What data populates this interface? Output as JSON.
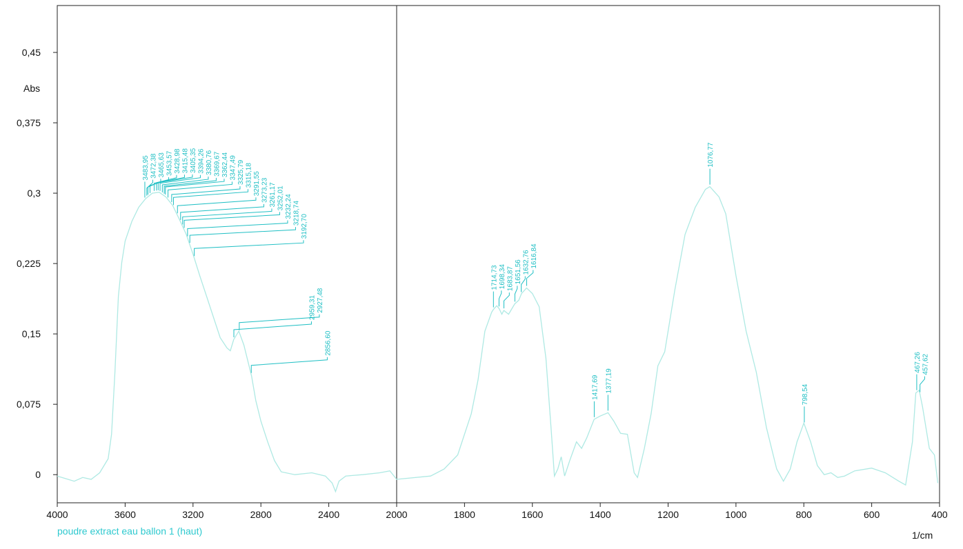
{
  "chart_data": {
    "type": "line",
    "y_label": "Abs",
    "x_label": "1/cm",
    "xlim": [
      4000,
      400
    ],
    "x_scale_break": 2000,
    "ylim": [
      -0.03,
      0.5
    ],
    "xticks": [
      4000,
      3600,
      3200,
      2800,
      2400,
      2000,
      1800,
      1600,
      1400,
      1200,
      1000,
      800,
      600,
      400
    ],
    "yticks": [
      0,
      {
        "value": 0.075,
        "label": "0,075"
      },
      {
        "value": 0.15,
        "label": "0,15"
      },
      {
        "value": 0.225,
        "label": "0,225"
      },
      {
        "value": 0.3,
        "label": "0,3"
      },
      {
        "value": 0.375,
        "label": "0,375"
      },
      {
        "value": 0.45,
        "label": "0,45"
      }
    ],
    "series": [
      {
        "name": "poudre extract eau ballon 1 (haut)",
        "color": "#aee9e3",
        "x": [
          4000,
          3900,
          3850,
          3800,
          3750,
          3700,
          3680,
          3660,
          3640,
          3620,
          3600,
          3560,
          3520,
          3480,
          3440,
          3400,
          3360,
          3320,
          3280,
          3240,
          3200,
          3160,
          3120,
          3080,
          3040,
          3000,
          2980,
          2960,
          2930,
          2900,
          2870,
          2855,
          2830,
          2800,
          2760,
          2720,
          2680,
          2600,
          2500,
          2420,
          2380,
          2360,
          2340,
          2300,
          2200,
          2100,
          2040,
          2000,
          1900,
          1860,
          1820,
          1780,
          1760,
          1740,
          1720,
          1715,
          1705,
          1698,
          1690,
          1684,
          1670,
          1652,
          1640,
          1632,
          1617,
          1600,
          1580,
          1560,
          1545,
          1535,
          1525,
          1515,
          1505,
          1490,
          1470,
          1455,
          1440,
          1418,
          1400,
          1377,
          1360,
          1340,
          1320,
          1300,
          1290,
          1270,
          1250,
          1230,
          1210,
          1180,
          1150,
          1120,
          1090,
          1077,
          1050,
          1030,
          1000,
          970,
          940,
          910,
          880,
          860,
          840,
          820,
          800,
          780,
          760,
          740,
          720,
          700,
          680,
          650,
          600,
          560,
          520,
          500,
          480,
          470,
          460,
          450,
          430,
          415,
          405
        ],
        "values": [
          -0.0015,
          -0.007,
          -0.003,
          -0.005,
          0.002,
          0.017,
          0.043,
          0.109,
          0.19,
          0.226,
          0.249,
          0.27,
          0.285,
          0.294,
          0.3,
          0.301,
          0.296,
          0.287,
          0.272,
          0.256,
          0.235,
          0.212,
          0.19,
          0.168,
          0.146,
          0.135,
          0.132,
          0.144,
          0.153,
          0.138,
          0.116,
          0.105,
          0.079,
          0.057,
          0.035,
          0.015,
          0.003,
          0,
          0.002,
          -0.0015,
          -0.009,
          -0.018,
          -0.007,
          -0.0015,
          0,
          0.002,
          0.004,
          -0.005,
          -0.0015,
          0.006,
          0.021,
          0.065,
          0.101,
          0.153,
          0.173,
          0.176,
          0.18,
          0.177,
          0.171,
          0.175,
          0.171,
          0.182,
          0.186,
          0.193,
          0.199,
          0.193,
          0.179,
          0.124,
          0.05,
          -0.0015,
          0.006,
          0.019,
          -0.0015,
          0.015,
          0.035,
          0.028,
          0.039,
          0.059,
          0.0625,
          0.066,
          0.057,
          0.044,
          0.043,
          0.002,
          -0.003,
          0.028,
          0.065,
          0.116,
          0.131,
          0.197,
          0.256,
          0.285,
          0.304,
          0.307,
          0.296,
          0.278,
          0.212,
          0.153,
          0.109,
          0.05,
          0.006,
          -0.007,
          0.006,
          0.035,
          0.055,
          0.035,
          0.0096,
          0,
          0.002,
          -0.003,
          -0.0015,
          0.004,
          0.007,
          0.002,
          -0.007,
          -0.011,
          0.035,
          0.087,
          0.09,
          0.072,
          0.028,
          0.021,
          -0.009
        ]
      }
    ],
    "peak_color": "#1fbfc4",
    "peaks": [
      {
        "value": 3483.95,
        "label": "3483,95"
      },
      {
        "value": 3472.38,
        "label": "3472,38"
      },
      {
        "value": 3465.63,
        "label": "3465,63"
      },
      {
        "value": 3453.57,
        "label": "3453,57"
      },
      {
        "value": 3428.98,
        "label": "3428,98"
      },
      {
        "value": 3415.48,
        "label": "3415,48"
      },
      {
        "value": 3405.35,
        "label": "3405,35"
      },
      {
        "value": 3394.26,
        "label": "3394,26"
      },
      {
        "value": 3380.76,
        "label": "3380,76"
      },
      {
        "value": 3369.67,
        "label": "3369,67"
      },
      {
        "value": 3362.44,
        "label": "3362,44"
      },
      {
        "value": 3347.49,
        "label": "3347,49"
      },
      {
        "value": 3325.79,
        "label": "3325,79"
      },
      {
        "value": 3315.18,
        "label": "3315,18"
      },
      {
        "value": 3291.55,
        "label": "3291,55"
      },
      {
        "value": 3273.23,
        "label": "3273,23"
      },
      {
        "value": 3261.17,
        "label": "3261,17"
      },
      {
        "value": 3252.01,
        "label": "3252,01"
      },
      {
        "value": 3232.24,
        "label": "3232,24"
      },
      {
        "value": 3218.74,
        "label": "3218,74"
      },
      {
        "value": 3192.7,
        "label": "3192,70"
      },
      {
        "value": 2959.31,
        "label": "2959,31"
      },
      {
        "value": 2927.48,
        "label": "2927,48"
      },
      {
        "value": 2856.6,
        "label": "2856,60"
      },
      {
        "value": 1714.73,
        "label": "1714,73"
      },
      {
        "value": 1698.34,
        "label": "1698,34"
      },
      {
        "value": 1683.87,
        "label": "1683,87"
      },
      {
        "value": 1651.56,
        "label": "1651,56"
      },
      {
        "value": 1632.76,
        "label": "1632,76"
      },
      {
        "value": 1616.84,
        "label": "1616,84"
      },
      {
        "value": 1417.69,
        "label": "1417,69"
      },
      {
        "value": 1377.19,
        "label": "1377,19"
      },
      {
        "value": 1076.77,
        "label": "1076,77"
      },
      {
        "value": 798.54,
        "label": "798,54"
      },
      {
        "value": 467.26,
        "label": "467,26"
      },
      {
        "value": 457.62,
        "label": "457,62"
      }
    ]
  }
}
